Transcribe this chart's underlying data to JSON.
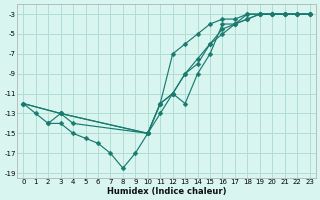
{
  "xlabel": "Humidex (Indice chaleur)",
  "bg_color": "#d8f5f0",
  "line_color": "#1a7a6e",
  "grid_color": "#b0ddd6",
  "xlim": [
    -0.5,
    23.5
  ],
  "ylim": [
    -19.5,
    -2.0
  ],
  "xticks": [
    0,
    1,
    2,
    3,
    4,
    5,
    6,
    7,
    8,
    9,
    10,
    11,
    12,
    13,
    14,
    15,
    16,
    17,
    18,
    19,
    20,
    21,
    22,
    23
  ],
  "yticks": [
    -3,
    -5,
    -7,
    -9,
    -11,
    -13,
    -15,
    -17,
    -19
  ],
  "line1_x": [
    0,
    3,
    10,
    11,
    12,
    13,
    14,
    15,
    16,
    17,
    18,
    19,
    20,
    21,
    22,
    23
  ],
  "line1_y": [
    -12,
    -13,
    -15,
    -12,
    -11,
    -12,
    -9,
    -7,
    -4,
    -4,
    -3,
    -3,
    -3,
    -3,
    -3,
    -3
  ],
  "line2_x": [
    0,
    1,
    2,
    3,
    4,
    5,
    6,
    7,
    8,
    9,
    10,
    11,
    12,
    13,
    14,
    15,
    16,
    17,
    18,
    19,
    20,
    21,
    22,
    23
  ],
  "line2_y": [
    -12,
    -13,
    -14,
    -14,
    -15,
    -15.5,
    -16,
    -17,
    -18.5,
    -17,
    -15,
    -13,
    -11,
    -9,
    -8,
    -6,
    -5,
    -4,
    -3.5,
    -3,
    -3,
    -3,
    -3,
    -3
  ],
  "line3_x": [
    2,
    3,
    4,
    10,
    11,
    12,
    13,
    14,
    15,
    16,
    17,
    18,
    19,
    20,
    21,
    22,
    23
  ],
  "line3_y": [
    -14,
    -13,
    -14,
    -15,
    -12,
    -11,
    -9,
    -7.5,
    -6,
    -4.5,
    -4,
    -3.5,
    -3,
    -3,
    -3,
    -3,
    -3
  ],
  "line4_x": [
    0,
    3,
    10,
    11,
    12,
    13,
    14,
    15,
    16,
    17,
    18,
    19,
    20,
    21,
    22,
    23
  ],
  "line4_y": [
    -12,
    -13,
    -15,
    -12,
    -7,
    -6,
    -5,
    -4,
    -3.5,
    -3.5,
    -3,
    -3,
    -3,
    -3,
    -3,
    -3
  ]
}
